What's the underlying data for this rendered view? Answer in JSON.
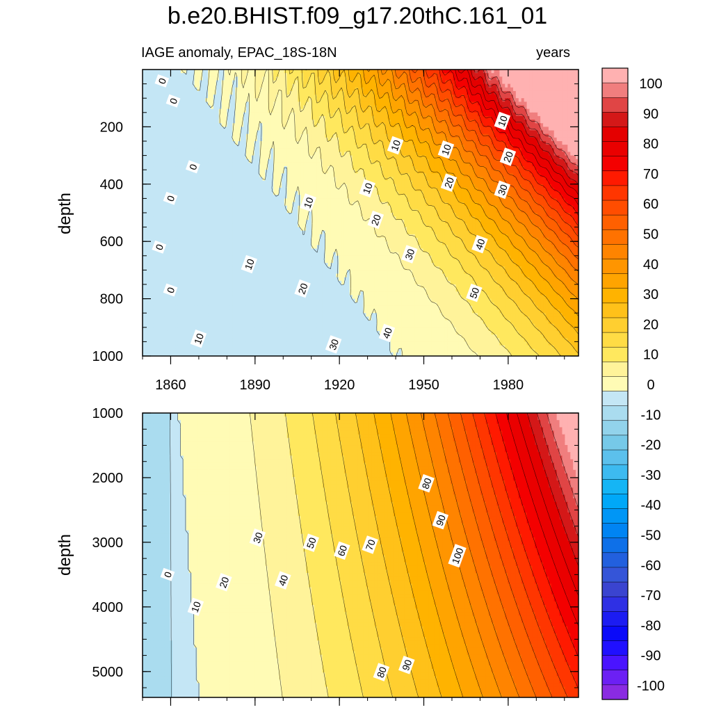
{
  "title": "b.e20.BHIST.f09_g17.20thC.161_01",
  "chart_data": {
    "type": "contour",
    "variable_label": "IAGE anomaly, EPAC_18S-18N",
    "units_label": "years",
    "x_range": [
      1850,
      2005
    ],
    "x_ticks": [
      1860,
      1890,
      1920,
      1950,
      1980
    ],
    "x_tick_labels": [
      "1860",
      "1890",
      "1920",
      "1950",
      "1980"
    ],
    "ylabel": "depth",
    "panels": [
      {
        "name": "upper",
        "ylim": [
          0,
          1000
        ],
        "y_ticks": [
          200,
          400,
          600,
          800,
          1000
        ],
        "y_tick_labels": [
          "200",
          "400",
          "600",
          "800",
          "1000"
        ],
        "contour_labels": [
          {
            "text": "0",
            "year": 1857,
            "depth": 40
          },
          {
            "text": "0",
            "year": 1861,
            "depth": 110
          },
          {
            "text": "0",
            "year": 1868,
            "depth": 340
          },
          {
            "text": "0",
            "year": 1860,
            "depth": 450
          },
          {
            "text": "0",
            "year": 1856,
            "depth": 620
          },
          {
            "text": "0",
            "year": 1860,
            "depth": 770
          },
          {
            "text": "10",
            "year": 1870,
            "depth": 940
          },
          {
            "text": "10",
            "year": 1888,
            "depth": 680
          },
          {
            "text": "10",
            "year": 1909,
            "depth": 465
          },
          {
            "text": "10",
            "year": 1930,
            "depth": 415
          },
          {
            "text": "10",
            "year": 1940,
            "depth": 265
          },
          {
            "text": "10",
            "year": 1958,
            "depth": 280
          },
          {
            "text": "10",
            "year": 1978,
            "depth": 180
          },
          {
            "text": "20",
            "year": 1907,
            "depth": 765
          },
          {
            "text": "20",
            "year": 1933,
            "depth": 525
          },
          {
            "text": "20",
            "year": 1959,
            "depth": 395
          },
          {
            "text": "20",
            "year": 1980,
            "depth": 305
          },
          {
            "text": "30",
            "year": 1918,
            "depth": 960
          },
          {
            "text": "30",
            "year": 1945,
            "depth": 645
          },
          {
            "text": "30",
            "year": 1978,
            "depth": 420
          },
          {
            "text": "40",
            "year": 1937,
            "depth": 920
          },
          {
            "text": "40",
            "year": 1970,
            "depth": 610
          },
          {
            "text": "50",
            "year": 1968,
            "depth": 780
          }
        ]
      },
      {
        "name": "lower",
        "ylim": [
          1000,
          5400
        ],
        "y_ticks": [
          1000,
          2000,
          3000,
          4000,
          5000
        ],
        "y_tick_labels": [
          "1000",
          "2000",
          "3000",
          "4000",
          "5000"
        ],
        "contour_labels": [
          {
            "text": "0",
            "year": 1859,
            "depth": 3500
          },
          {
            "text": "10",
            "year": 1869,
            "depth": 4000
          },
          {
            "text": "20",
            "year": 1879,
            "depth": 3620
          },
          {
            "text": "30",
            "year": 1891,
            "depth": 2930
          },
          {
            "text": "40",
            "year": 1900,
            "depth": 3590
          },
          {
            "text": "50",
            "year": 1910,
            "depth": 3010
          },
          {
            "text": "60",
            "year": 1921,
            "depth": 3130
          },
          {
            "text": "70",
            "year": 1931,
            "depth": 3040
          },
          {
            "text": "80",
            "year": 1951,
            "depth": 2090
          },
          {
            "text": "90",
            "year": 1956,
            "depth": 2660
          },
          {
            "text": "100",
            "year": 1962,
            "depth": 3210
          },
          {
            "text": "80",
            "year": 1935,
            "depth": 5010
          },
          {
            "text": "90",
            "year": 1944,
            "depth": 4900
          }
        ]
      }
    ],
    "colorbar": {
      "levels": [
        -100,
        -90,
        -80,
        -70,
        -60,
        -50,
        -40,
        -30,
        -20,
        -10,
        0,
        10,
        20,
        30,
        40,
        50,
        60,
        70,
        80,
        90,
        100
      ],
      "tick_labels": [
        "100",
        "90",
        "80",
        "70",
        "60",
        "50",
        "40",
        "30",
        "20",
        "10",
        "0",
        "-10",
        "-20",
        "-30",
        "-40",
        "-50",
        "-60",
        "-70",
        "-80",
        "-90",
        "-100"
      ],
      "colors_top_to_bottom": [
        "#ffb1b1",
        "#f07e7e",
        "#e04545",
        "#d41818",
        "#e40000",
        "#ea0000",
        "#f40000",
        "#ff1a00",
        "#ff3600",
        "#ff4d00",
        "#ff6000",
        "#ff7200",
        "#ff8400",
        "#ff9500",
        "#ffa400",
        "#ffb300",
        "#ffc119",
        "#ffcf30",
        "#ffdc45",
        "#ffe85e",
        "#fff39a",
        "#fffbb5",
        "#c4e6f5",
        "#aadcef",
        "#92d3eb",
        "#76c9e8",
        "#5cc0ec",
        "#3dbaf0",
        "#15b5f5",
        "#00a8f8",
        "#0096f6",
        "#0084f3",
        "#0e70e8",
        "#2260de",
        "#3555d8",
        "#3a44d0",
        "#2f30e4",
        "#1c1cf2",
        "#0a0af9",
        "#2010ff",
        "#4a14ff",
        "#6c20f4",
        "#8a2be2"
      ]
    }
  }
}
